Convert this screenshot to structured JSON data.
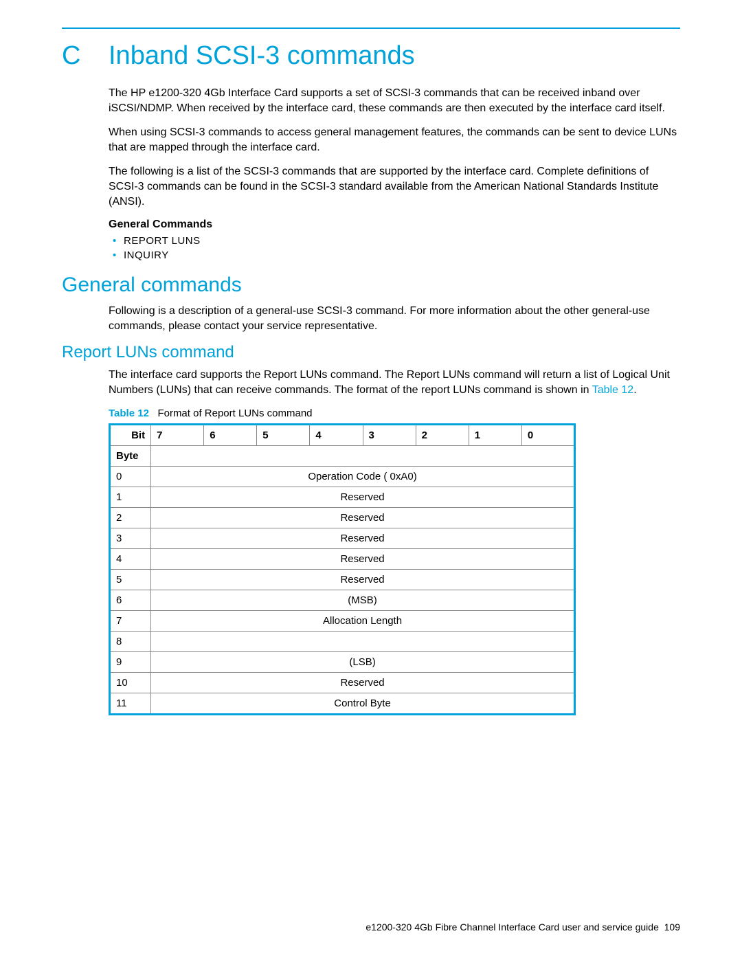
{
  "appendix": {
    "letter": "C",
    "title": "Inband SCSI-3 commands"
  },
  "intro": {
    "p1": "The HP e1200-320 4Gb Interface Card supports a set of SCSI-3 commands that can be received inband over iSCSI/NDMP. When received by the interface card, these commands are then executed by the interface card itself.",
    "p2": "When using SCSI-3 commands to access general management features, the commands can be sent to device LUNs that are mapped through the interface card.",
    "p3": "The following is a list of the SCSI-3 commands that are supported by the interface card. Complete definitions of SCSI-3 commands can be found in the SCSI-3 standard available from the American National Standards Institute (ANSI)."
  },
  "general_commands_label": "General Commands",
  "cmd_list": [
    "REPORT LUNS",
    "INQUIRY"
  ],
  "section2": {
    "title": "General commands",
    "para": "Following is a description of a general-use SCSI-3 command. For more information about the other general-use commands, please contact your service representative."
  },
  "section3": {
    "title": "Report LUNs command",
    "para_prefix": "The interface card supports the Report LUNs command. The Report LUNs command will return a list of Logical Unit Numbers (LUNs) that can receive commands. The format of the report LUNs command is shown in ",
    "table_ref": "Table 12",
    "para_suffix": "."
  },
  "table": {
    "label": "Table 12",
    "caption": "Format of Report LUNs command",
    "header_bit": "Bit",
    "header_byte": "Byte",
    "bits": [
      "7",
      "6",
      "5",
      "4",
      "3",
      "2",
      "1",
      "0"
    ],
    "rows": [
      {
        "byte": "0",
        "span": "Operation Code ( 0xA0)"
      },
      {
        "byte": "1",
        "span": "Reserved"
      },
      {
        "byte": "2",
        "span": "Reserved"
      },
      {
        "byte": "3",
        "span": "Reserved"
      },
      {
        "byte": "4",
        "span": "Reserved"
      },
      {
        "byte": "5",
        "span": "Reserved"
      },
      {
        "byte": "6",
        "span": "(MSB)"
      },
      {
        "byte": "7",
        "span": "Allocation Length"
      },
      {
        "byte": "8",
        "span": ""
      },
      {
        "byte": "9",
        "span": "(LSB)"
      },
      {
        "byte": "10",
        "span": "Reserved"
      },
      {
        "byte": "11",
        "span": "Control Byte"
      }
    ],
    "border_color": "#00a3d9",
    "grid_color": "#888888"
  },
  "footer": {
    "text": "e1200-320 4Gb Fibre Channel Interface Card user and service guide",
    "page": "109"
  },
  "colors": {
    "accent": "#00a3d9"
  }
}
